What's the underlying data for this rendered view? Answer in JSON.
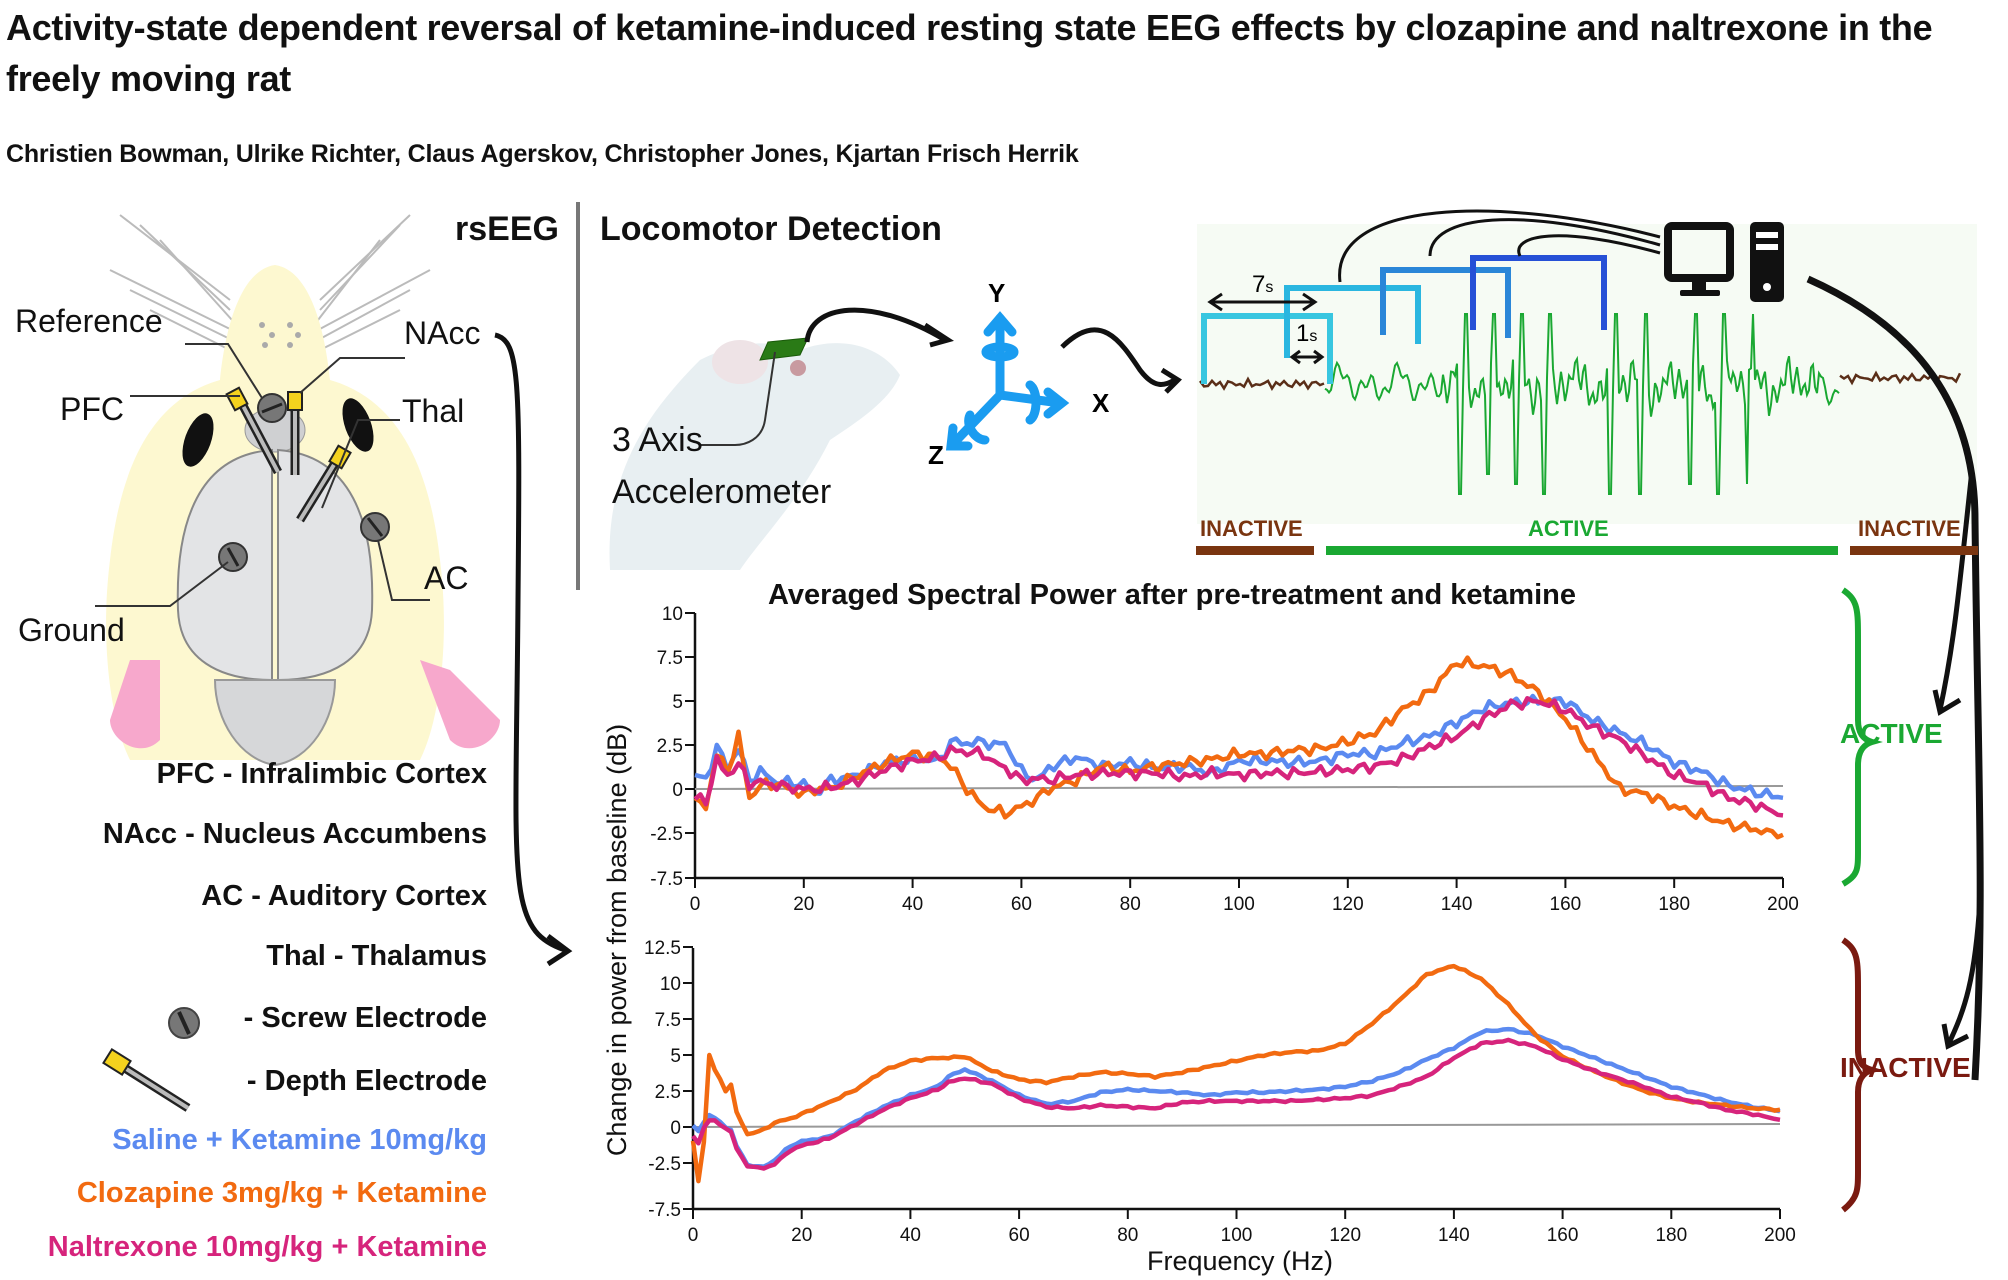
{
  "header": {
    "title": "Activity-state dependent reversal of ketamine-induced resting state EEG effects by clozapine and naltrexone in the freely moving rat",
    "authors": "Christien Bowman, Ulrike Richter, Claus Agerskov, Christopher Jones, Kjartan Frisch Herrik"
  },
  "rseeg": {
    "heading": "rsEEG",
    "labels": {
      "reference": "Reference",
      "nacc": "NAcc",
      "pfc": "PFC",
      "thal": "Thal",
      "ac": "AC",
      "ground": "Ground"
    },
    "legend": [
      {
        "text": "PFC - Infralimbic Cortex"
      },
      {
        "text": "NAcc - Nucleus Accumbens"
      },
      {
        "text": "AC - Auditory Cortex"
      },
      {
        "text": "Thal - Thalamus"
      },
      {
        "text": "- Screw Electrode",
        "icon": "screw-electrode-icon"
      },
      {
        "text": "- Depth Electrode",
        "icon": "depth-electrode-icon"
      }
    ],
    "treatments": [
      {
        "text": "Saline + Ketamine 10mg/kg",
        "color": "#5b8af0"
      },
      {
        "text": "Clozapine 3mg/kg + Ketamine",
        "color": "#f26a10"
      },
      {
        "text": "Naltrexone 10mg/kg + Ketamine",
        "color": "#d6247c"
      }
    ]
  },
  "locomotor": {
    "heading": "Locomotor Detection",
    "accelerometer_label_1": "3 Axis",
    "accelerometer_label_2": "Accelerometer",
    "axes": {
      "x": "X",
      "y": "Y",
      "z": "Z"
    },
    "window_label": "7",
    "window_unit": "s",
    "step_label": "1",
    "step_unit": "s",
    "states": {
      "inactive": "INACTIVE",
      "active": "ACTIVE"
    },
    "colors": {
      "inactive": "#7a3510",
      "active": "#1aa832",
      "window_colors": [
        "#38c6e0",
        "#2aa6e0",
        "#2a86d8",
        "#2650d6"
      ]
    }
  },
  "chart_data": [
    {
      "type": "line",
      "title": "Averaged Spectral Power after pre-treatment and ketamine",
      "state": "ACTIVE",
      "state_color": "#1aa832",
      "xlabel": "",
      "ylabel": "Change in power from baseline (dB)",
      "xlim": [
        0,
        200
      ],
      "ylim": [
        -7.5,
        10
      ],
      "axis_break": "between -2.5 and -7.5",
      "xticks": [
        "0",
        "20",
        "40",
        "60",
        "80",
        "100",
        "120",
        "140",
        "160",
        "180",
        "200"
      ],
      "yticks": [
        "10",
        "7.5",
        "5",
        "2.5",
        "0",
        "-2.5",
        "-7.5"
      ],
      "x": [
        0,
        2,
        4,
        6,
        8,
        10,
        12,
        15,
        20,
        22,
        25,
        30,
        35,
        40,
        45,
        47,
        50,
        53,
        55,
        57,
        60,
        63,
        65,
        70,
        75,
        80,
        85,
        90,
        95,
        100,
        105,
        110,
        115,
        120,
        125,
        130,
        135,
        140,
        145,
        150,
        155,
        160,
        165,
        170,
        175,
        180,
        185,
        190,
        195,
        200
      ],
      "series": [
        {
          "name": "Saline + Ketamine 10mg/kg",
          "color": "#5b8af0",
          "values": [
            0.8,
            0.5,
            2.4,
            1.2,
            2.3,
            0.5,
            1.0,
            0.4,
            0.3,
            -0.3,
            0.5,
            0.8,
            1.5,
            1.7,
            1.6,
            2.7,
            2.6,
            2.7,
            2.5,
            2.6,
            1.0,
            0.5,
            1.2,
            1.8,
            1.3,
            1.5,
            1.2,
            1.3,
            0.9,
            1.6,
            1.6,
            1.5,
            1.6,
            2.0,
            2.0,
            2.6,
            3.0,
            3.8,
            4.6,
            4.9,
            5.0,
            5.0,
            3.9,
            3.2,
            2.5,
            1.5,
            1.0,
            0.2,
            -0.2,
            -0.5
          ]
        },
        {
          "name": "Clozapine 3mg/kg + Ketamine",
          "color": "#f26a10",
          "values": [
            -0.7,
            -1.0,
            2.0,
            1.0,
            3.0,
            -0.5,
            0.2,
            0.3,
            -0.3,
            0.0,
            0.0,
            0.8,
            1.5,
            2.0,
            1.8,
            1.3,
            0.0,
            -1.0,
            -1.2,
            -1.4,
            -1.0,
            -0.5,
            0.0,
            0.5,
            1.3,
            1.0,
            1.3,
            1.5,
            1.7,
            2.0,
            2.0,
            2.2,
            2.3,
            2.7,
            3.2,
            4.5,
            5.5,
            7.2,
            7.0,
            6.5,
            5.5,
            4.0,
            2.0,
            0.0,
            -0.3,
            -1.0,
            -1.5,
            -2.0,
            -2.3,
            -2.7
          ]
        },
        {
          "name": "Naltrexone 10mg/kg + Ketamine",
          "color": "#d6247c",
          "values": [
            -0.5,
            -0.7,
            1.6,
            0.8,
            1.4,
            0.3,
            0.4,
            0.2,
            0.0,
            0.0,
            0.1,
            0.5,
            1.1,
            1.6,
            1.8,
            2.2,
            2.1,
            2.0,
            1.5,
            1.2,
            0.5,
            0.6,
            0.5,
            0.8,
            0.9,
            0.9,
            0.9,
            0.7,
            0.9,
            0.8,
            0.9,
            0.9,
            1.0,
            1.1,
            1.3,
            1.7,
            2.4,
            3.0,
            4.0,
            4.8,
            5.0,
            4.5,
            3.5,
            2.8,
            1.8,
            0.8,
            0.3,
            -0.5,
            -0.9,
            -1.5
          ]
        }
      ]
    },
    {
      "type": "line",
      "title": "",
      "state": "INACTIVE",
      "state_color": "#7a1a10",
      "xlabel": "Frequency (Hz)",
      "ylabel": "Change in power from baseline (dB)",
      "xlim": [
        0,
        200
      ],
      "ylim": [
        -7.5,
        12.5
      ],
      "axis_break": "between -2.5 and -7.5",
      "xticks": [
        "0",
        "20",
        "40",
        "60",
        "80",
        "100",
        "120",
        "140",
        "160",
        "180",
        "200"
      ],
      "yticks": [
        "12.5",
        "10",
        "7.5",
        "5",
        "2.5",
        "0",
        "-2.5",
        "-7.5"
      ],
      "x": [
        0,
        1,
        2,
        3,
        4,
        6,
        7,
        8,
        10,
        12,
        13,
        15,
        18,
        20,
        25,
        30,
        35,
        40,
        45,
        47,
        50,
        55,
        60,
        65,
        70,
        75,
        80,
        85,
        90,
        95,
        100,
        105,
        110,
        115,
        120,
        125,
        130,
        135,
        140,
        145,
        150,
        155,
        160,
        165,
        170,
        175,
        180,
        185,
        190,
        195,
        200
      ],
      "series": [
        {
          "name": "Saline + Ketamine 10mg/kg",
          "color": "#5b8af0",
          "values": [
            0.1,
            -0.3,
            0.3,
            0.9,
            0.6,
            0.0,
            -0.2,
            -1.3,
            -2.7,
            -2.9,
            -2.9,
            -2.3,
            -1.3,
            -1.0,
            -0.7,
            0.4,
            1.4,
            2.2,
            2.8,
            3.5,
            4.0,
            3.2,
            2.2,
            1.6,
            1.8,
            2.4,
            2.6,
            2.5,
            2.4,
            2.2,
            2.4,
            2.4,
            2.5,
            2.6,
            2.8,
            3.2,
            3.8,
            4.7,
            5.5,
            6.6,
            6.8,
            6.4,
            5.6,
            4.9,
            4.2,
            3.5,
            2.8,
            2.3,
            1.8,
            1.4,
            1.1
          ]
        },
        {
          "name": "Clozapine 3mg/kg + Ketamine",
          "color": "#f26a10",
          "values": [
            -1.0,
            -4.5,
            -1.0,
            5.0,
            4.0,
            2.5,
            3.0,
            1.0,
            -0.5,
            -0.3,
            -0.2,
            0.3,
            0.6,
            0.9,
            1.7,
            2.6,
            3.9,
            4.6,
            4.8,
            4.8,
            4.9,
            3.9,
            3.3,
            3.1,
            3.5,
            3.8,
            3.7,
            3.5,
            3.8,
            4.2,
            4.6,
            5.0,
            5.2,
            5.3,
            5.8,
            7.2,
            8.8,
            10.6,
            11.2,
            10.3,
            8.5,
            6.4,
            4.9,
            4.0,
            3.2,
            2.5,
            2.0,
            1.7,
            1.5,
            1.3,
            1.2
          ]
        },
        {
          "name": "Naltrexone 10mg/kg + Ketamine",
          "color": "#d6247c",
          "values": [
            -0.6,
            -1.2,
            0.0,
            0.5,
            0.4,
            -0.1,
            -0.3,
            -1.5,
            -2.8,
            -3.0,
            -3.1,
            -2.6,
            -1.6,
            -1.3,
            -0.8,
            0.2,
            1.2,
            2.0,
            2.6,
            3.1,
            3.4,
            3.0,
            2.0,
            1.4,
            1.3,
            1.5,
            1.4,
            1.3,
            1.7,
            1.8,
            1.8,
            1.8,
            1.8,
            1.9,
            2.0,
            2.2,
            2.8,
            3.5,
            4.8,
            5.8,
            6.0,
            5.6,
            4.7,
            4.0,
            3.4,
            2.8,
            2.1,
            1.7,
            1.2,
            0.9,
            0.5
          ]
        }
      ]
    }
  ]
}
